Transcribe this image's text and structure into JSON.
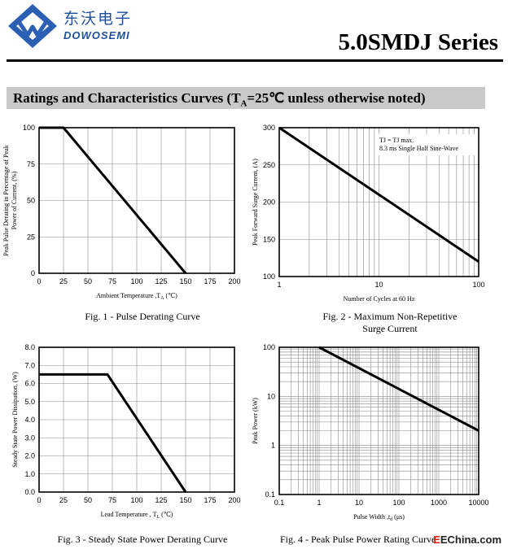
{
  "header": {
    "brand_cn": "东沃电子",
    "brand_en": "DOWOSEMI",
    "series": "5.0SMDJ Series",
    "brand_color": "#1f4f9e"
  },
  "section": {
    "title_main": "Ratings and Characteristics Curves (T",
    "title_sub": "A",
    "title_rest": "=25℃ unless otherwise noted)"
  },
  "chart_data": [
    {
      "type": "line",
      "caption": "Fig. 1 - Pulse Derating Curve",
      "xlabel": "Ambient Temperature ,T",
      "xlabel_sub": "A",
      "xlabel_unit": " (℃)",
      "ylabel": "Peak Pulse Derating in Percentage of Peak Power of Current, (%)",
      "xlim": [
        0,
        200
      ],
      "ylim": [
        0,
        100
      ],
      "xticks": [
        0,
        25,
        50,
        75,
        100,
        125,
        150,
        175,
        200
      ],
      "yticks": [
        0,
        25,
        50,
        75,
        100
      ],
      "x_scale": "linear",
      "y_scale": "linear",
      "grid": true,
      "x": [
        0,
        25,
        150
      ],
      "y": [
        100,
        100,
        0
      ]
    },
    {
      "type": "line",
      "caption": "Fig. 2 - Maximum Non-Repetitive Surge Current",
      "xlabel": "Number of Cycles at 60 Hz",
      "ylabel": "Peak Forward Surge Current, (A)",
      "xlim": [
        1,
        100
      ],
      "ylim": [
        100,
        300
      ],
      "xticks": [
        1,
        10,
        100
      ],
      "yticks": [
        100,
        150,
        200,
        250,
        300
      ],
      "x_scale": "log",
      "y_scale": "linear",
      "grid": true,
      "annotation": [
        "TJ = TJ max.",
        "8.3 ms Single Half Sine-Wave"
      ],
      "x": [
        1,
        100
      ],
      "y": [
        300,
        120
      ]
    },
    {
      "type": "line",
      "caption": "Fig. 3 - Steady State Power Derating Curve",
      "xlabel": "Lead Temperature , T",
      "xlabel_sub": "L",
      "xlabel_unit": " (℃)",
      "ylabel": "Steady State Power Dissipation, (W)",
      "xlim": [
        0,
        200
      ],
      "ylim": [
        0,
        8.0
      ],
      "xticks": [
        0,
        25,
        50,
        75,
        100,
        125,
        150,
        175,
        200
      ],
      "yticks": [
        "0.0",
        "1.0",
        "2.0",
        "3.0",
        "4.0",
        "5.0",
        "6.0",
        "7.0",
        "8.0"
      ],
      "x_scale": "linear",
      "y_scale": "linear",
      "grid": true,
      "x": [
        0,
        70,
        150
      ],
      "y": [
        6.5,
        6.5,
        0
      ]
    },
    {
      "type": "line",
      "caption": "Fig. 4 - Peak Pulse Power Rating Curve",
      "xlabel": "Pulse Width ,t",
      "xlabel_sub": "d",
      "xlabel_unit": " (μs)",
      "ylabel": "Peak Power (kW)",
      "xlim": [
        0.1,
        10000
      ],
      "ylim": [
        0.1,
        100
      ],
      "xticks": [
        "0.1",
        "1",
        "10",
        "100",
        "1000",
        "10000"
      ],
      "yticks": [
        "0.1",
        "1",
        "10",
        "100"
      ],
      "x_scale": "log",
      "y_scale": "log",
      "grid": true,
      "x": [
        1,
        10000
      ],
      "y": [
        100,
        2
      ]
    }
  ],
  "watermark": {
    "e": "E",
    "rest": "EChina.com"
  }
}
